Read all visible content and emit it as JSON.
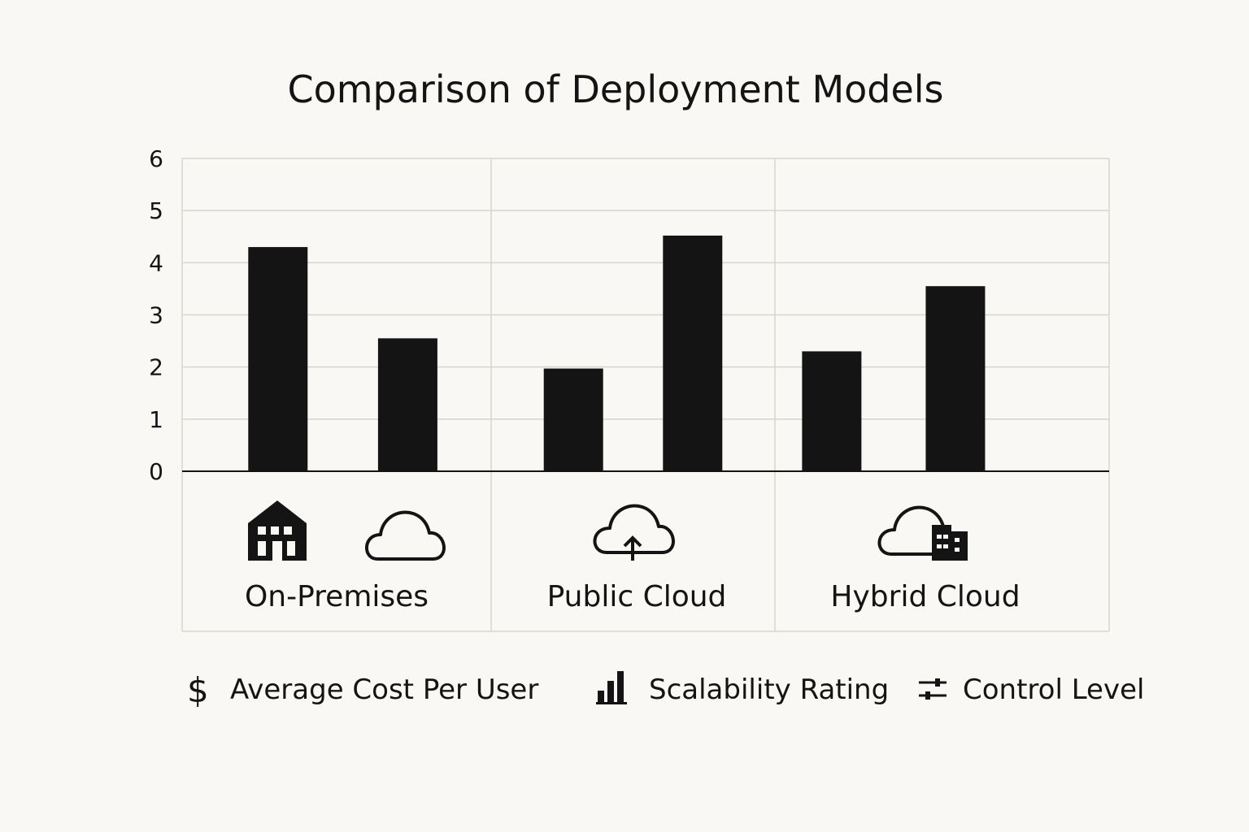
{
  "chart_data": {
    "type": "bar",
    "title": "Comparison of Deployment Models",
    "categories": [
      "On-Premises",
      "Public Cloud",
      "Hybrid Cloud"
    ],
    "category_icons": [
      [
        "building-icon",
        "cloud-icon"
      ],
      [
        "cloud-upload-icon"
      ],
      [
        "cloud-building-icon"
      ]
    ],
    "bar_values": [
      [
        4.3,
        2.55
      ],
      [
        1.97,
        4.52
      ],
      [
        2.3,
        3.55
      ]
    ],
    "legend": [
      {
        "label": "Average Cost Per User",
        "icon": "dollar-icon"
      },
      {
        "label": "Scalability Rating",
        "icon": "bar-chart-icon"
      },
      {
        "label": "Control Level",
        "icon": "sliders-icon"
      }
    ],
    "ylim": [
      0,
      6
    ],
    "yticks": [
      "0",
      "1",
      "2",
      "3",
      "4",
      "5",
      "6"
    ],
    "grid": true,
    "legend_position": "bottom",
    "bar_color": "#141414"
  }
}
